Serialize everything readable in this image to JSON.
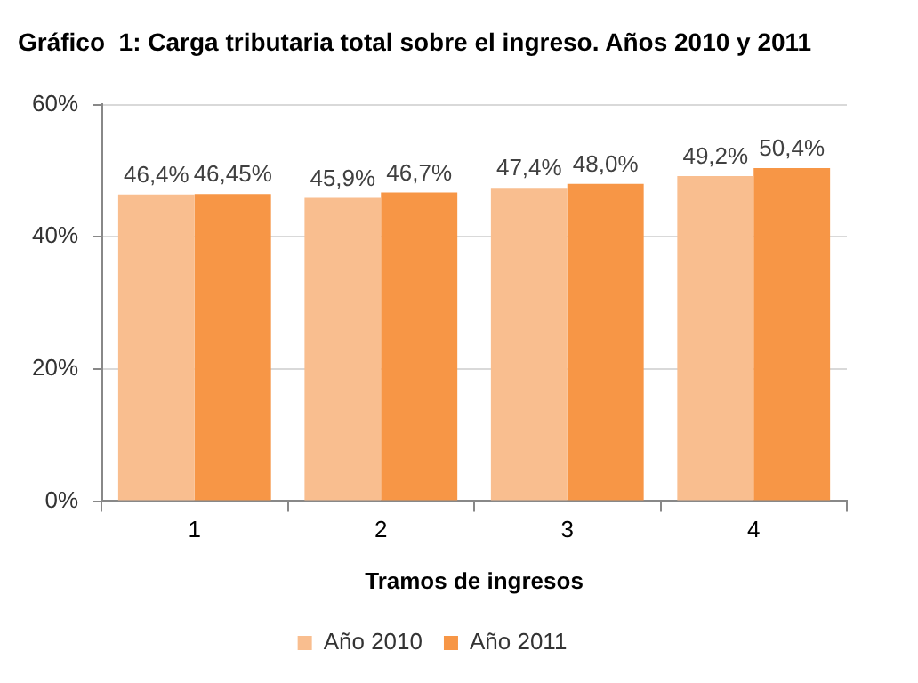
{
  "chart_data": {
    "type": "bar",
    "title": "Gráfico  1: Carga tributaria total sobre el ingreso. Años 2010 y 2011",
    "xlabel": "Tramos de ingresos",
    "categories": [
      "1",
      "2",
      "3",
      "4"
    ],
    "series": [
      {
        "name": "Año 2010",
        "color": "#f9be8f",
        "values": [
          46.4,
          45.9,
          47.4,
          49.2
        ],
        "value_labels": [
          "46,4%",
          "45,9%",
          "47,4%",
          "49,2%"
        ]
      },
      {
        "name": "Año 2011",
        "color": "#f79646",
        "values": [
          46.45,
          46.7,
          48.0,
          50.4
        ],
        "value_labels": [
          "46,45%",
          "46,7%",
          "48,0%",
          "50,4%"
        ]
      }
    ],
    "ylim": [
      0,
      60
    ],
    "yticks": [
      {
        "value": 0,
        "label": "0%"
      },
      {
        "value": 20,
        "label": "20%"
      },
      {
        "value": 40,
        "label": "40%"
      },
      {
        "value": 60,
        "label": "60%"
      }
    ],
    "grid": "y",
    "legend": "bottom"
  }
}
